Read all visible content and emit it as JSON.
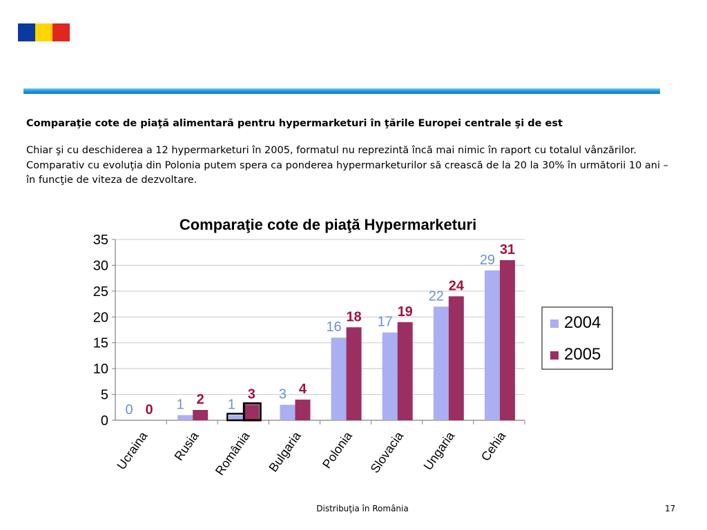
{
  "flag": {
    "colors": [
      "#0b3a9c",
      "#ffd500",
      "#e0271f"
    ]
  },
  "heading": "Comparaţie cote de piaţă alimentară pentru hypermarketuri în ţările Europei centrale şi de est",
  "paragraph": "Chiar şi cu deschiderea a 12 hypermarketuri în 2005, formatul nu reprezintă încă mai nimic în raport cu totalul vânzărilor. Comparativ cu evoluţia din Polonia putem spera ca ponderea hypermarketurilor să crească de la 20 la 30% în următorii 10 ani – în funcţie de viteza de dezvoltare.",
  "footer": {
    "title": "Distribuţia în România",
    "page": "17"
  },
  "chart_data": {
    "type": "bar",
    "title": "Comparaţie cote de piaţă Hypermarketuri",
    "categories": [
      "Ucraina",
      "Rusia",
      "România",
      "Bulgaria",
      "Polonia",
      "Slovacia",
      "Ungaria",
      "Cehia"
    ],
    "series": [
      {
        "name": "2004",
        "values": [
          0,
          1,
          1,
          3,
          16,
          17,
          22,
          29
        ],
        "color": "#a9aff0",
        "label_color": "#6e8fd8"
      },
      {
        "name": "2005",
        "values": [
          0,
          2,
          3,
          4,
          18,
          19,
          24,
          31
        ],
        "color": "#9c2f62",
        "label_color": "#a1123c"
      }
    ],
    "yticks": [
      "0",
      "5",
      "10",
      "15",
      "20",
      "25",
      "30",
      "35"
    ],
    "ylim": [
      0,
      35
    ],
    "grid": true,
    "legend": "right",
    "highlight_category": "România"
  }
}
